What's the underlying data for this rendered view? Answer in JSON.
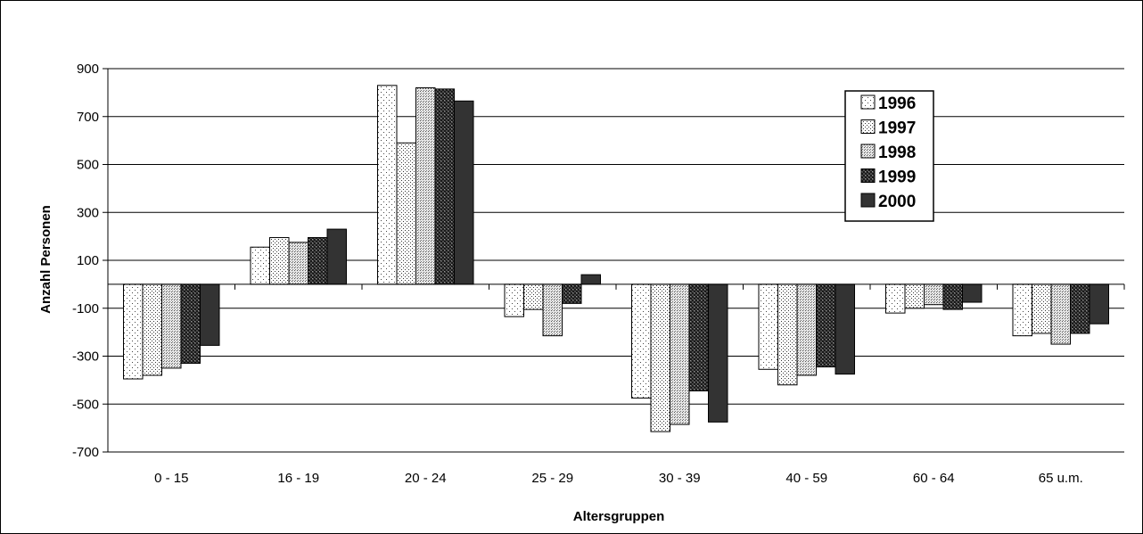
{
  "chart_data": {
    "type": "bar",
    "title": "",
    "xlabel": "Altersgruppen",
    "ylabel": "Anzahl Personen",
    "ylim": [
      -700,
      900
    ],
    "yticks": [
      900,
      700,
      500,
      300,
      100,
      -100,
      -300,
      -500,
      -700
    ],
    "grid": true,
    "legend_position": "top-right",
    "categories": [
      "0 - 15",
      "16 - 19",
      "20 - 24",
      "25 - 29",
      "30 - 39",
      "40 - 59",
      "60 - 64",
      "65 u.m."
    ],
    "series": [
      {
        "name": "1996",
        "values": [
          -395,
          155,
          830,
          -135,
          -475,
          -355,
          -120,
          -215
        ],
        "pattern": "sparse-dots"
      },
      {
        "name": "1997",
        "values": [
          -380,
          195,
          590,
          -105,
          -615,
          -420,
          -100,
          -205
        ],
        "pattern": "medium-dots"
      },
      {
        "name": "1998",
        "values": [
          -350,
          175,
          820,
          -215,
          -585,
          -380,
          -85,
          -250
        ],
        "pattern": "dense-dots"
      },
      {
        "name": "1999",
        "values": [
          -330,
          195,
          815,
          -80,
          -445,
          -345,
          -105,
          -205
        ],
        "pattern": "checker"
      },
      {
        "name": "2000",
        "values": [
          -255,
          230,
          765,
          40,
          -575,
          -375,
          -75,
          -165
        ],
        "pattern": "solid"
      }
    ]
  }
}
